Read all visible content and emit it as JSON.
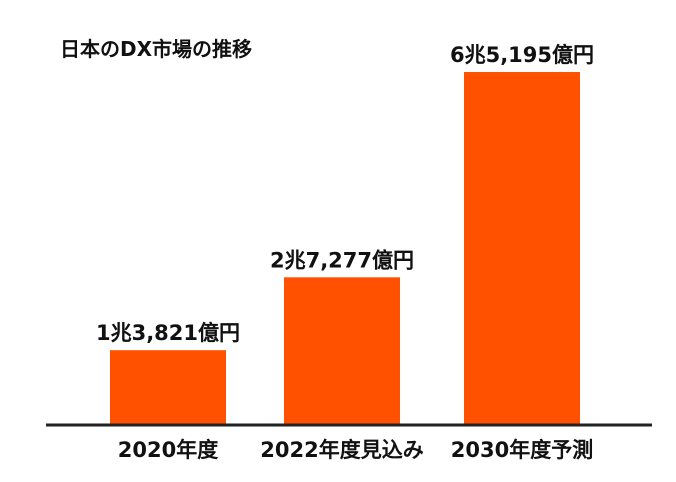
{
  "chart_data": {
    "type": "bar",
    "title": "日本のDX市場の推移",
    "xlabel": "",
    "ylabel": "",
    "categories": [
      "2020年度",
      "2022年度見込み",
      "2030年度予測"
    ],
    "values": [
      13821,
      27277,
      65195
    ],
    "value_labels": [
      "1兆3,821億円",
      "2兆7,277億円",
      "6兆5,195億円"
    ],
    "unit": "億円",
    "ylim": [
      0,
      70000
    ],
    "grid": false,
    "legend": "none",
    "bar_color": "#ff5100",
    "axis_color": "#222222"
  }
}
